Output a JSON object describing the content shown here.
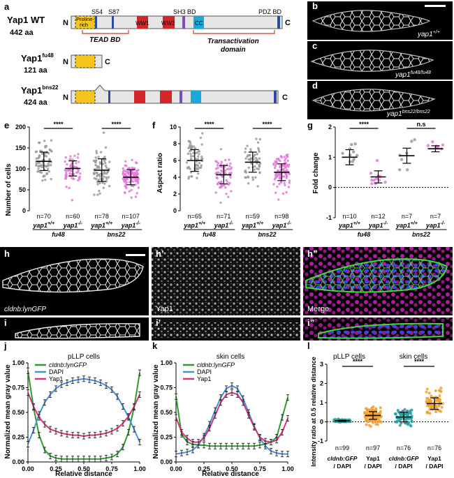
{
  "panels": {
    "a": {
      "letter": "a",
      "constructs": [
        {
          "name": "Yap1 WT",
          "length": "442 aa",
          "n": "N",
          "c": "C"
        },
        {
          "name": "Yap1",
          "sup": "fu48",
          "length": "121 aa",
          "n": "N",
          "c": "C"
        },
        {
          "name": "Yap1",
          "sup": "bns22",
          "length": "424 aa",
          "n": "N",
          "c": "C"
        }
      ],
      "domain_labels": {
        "proline1": "Proline-",
        "proline2": "rich",
        "s54": "S54",
        "s87": "S87",
        "ww1": "WW1",
        "ww2": "WW2",
        "sh3": "SH3 BD",
        "cc": "CC",
        "pdz": "PDZ BD",
        "tead": "TEAD BD",
        "trans1": "Transactivation",
        "trans2": "domain"
      },
      "colors": {
        "proline": "#f5c51c",
        "ww": "#d3262b",
        "cc": "#1aa8d8",
        "sh3": "#7b4fb5",
        "site": "#2a4aa5",
        "body": "#e6e6e6",
        "bracket": "#d9352a"
      }
    },
    "micrographs": [
      {
        "letter": "b",
        "label": "yap1",
        "sup": "+/+"
      },
      {
        "letter": "c",
        "label": "yap1",
        "sup": "fu48/fu48"
      },
      {
        "letter": "d",
        "label": "yap1",
        "sup": "bns22/bns22"
      }
    ],
    "e": {
      "letter": "e",
      "ylabel": "Number of cells",
      "sig": [
        "****",
        "****"
      ],
      "ns": [
        "n=70",
        "n=60",
        "n=78",
        "n=107"
      ]
    },
    "f": {
      "letter": "f",
      "ylabel": "Aspect ratio",
      "sig": [
        "****",
        "****"
      ],
      "ns": [
        "n=65",
        "n=71",
        "n=59",
        "n=98"
      ]
    },
    "g": {
      "letter": "g",
      "ylabel": "Fold change",
      "sig": [
        "****",
        "n.s"
      ],
      "ns": [
        "n=10",
        "n=12",
        "n=7",
        "n=7"
      ]
    },
    "genotype_labels": {
      "wt": "yap1",
      "wt_sup": "+/+",
      "mut": "yap1",
      "mut_sup": "-/-",
      "allele1": "fu48",
      "allele2": "bns22"
    },
    "h_row": [
      {
        "letter": "h",
        "label": "cldnb:lynGFP"
      },
      {
        "letter": "h’",
        "label": "Yap1"
      },
      {
        "letter": "h”",
        "label": "Merge"
      }
    ],
    "i_row": [
      {
        "letter": "i"
      },
      {
        "letter": "i’"
      },
      {
        "letter": "i”"
      }
    ],
    "j": {
      "letter": "j",
      "title": "pLLP cells",
      "ylabel": "Normalized mean gray value",
      "xlabel": "Relative distance"
    },
    "k": {
      "letter": "k",
      "title": "skin cells",
      "ylabel": "Normalized mean gray value",
      "xlabel": "Relative distance"
    },
    "l": {
      "letter": "l",
      "title1": "pLLP cells",
      "title2": "skin cells",
      "ylabel": "Intensity ratio at 0.5 relative distance",
      "sig": [
        "****",
        "****"
      ],
      "ns": [
        "n=99",
        "n=97",
        "n=76",
        "n=76"
      ],
      "xl": [
        [
          "cldnb:GFP",
          "/ DAPI"
        ],
        [
          "Yap1",
          "/ DAPI"
        ],
        [
          "cldnb:GFP",
          "/ DAPI"
        ],
        [
          "Yap1",
          "/ DAPI"
        ]
      ]
    },
    "legend": {
      "gfp": "cldnb:lynGFP",
      "dapi": "DAPI",
      "yap": "Yap1"
    }
  },
  "chart_data": [
    {
      "type": "scatter",
      "panel": "e",
      "ylabel": "Number of cells",
      "ylim": [
        0,
        200
      ],
      "yticks": [
        0,
        50,
        100,
        150,
        200
      ],
      "categories": [
        "yap1+/+ fu48",
        "yap1-/- fu48",
        "yap1+/+ bns22",
        "yap1-/- bns22"
      ],
      "colors": [
        "#9a9a9a",
        "#e07ad8",
        "#9a9a9a",
        "#e07ad8"
      ],
      "mean": [
        118,
        101,
        97,
        80
      ],
      "sd": [
        22,
        18,
        27,
        18
      ],
      "n": [
        70,
        60,
        78,
        107
      ]
    },
    {
      "type": "scatter",
      "panel": "f",
      "ylabel": "Aspect ratio",
      "ylim": [
        0,
        10
      ],
      "yticks": [
        0,
        2,
        4,
        6,
        8,
        10
      ],
      "categories": [
        "yap1+/+ fu48",
        "yap1-/- fu48",
        "yap1+/+ bns22",
        "yap1-/- bns22"
      ],
      "colors": [
        "#9a9a9a",
        "#e07ad8",
        "#9a9a9a",
        "#e07ad8"
      ],
      "mean": [
        6.0,
        4.3,
        5.8,
        4.6
      ],
      "sd": [
        1.3,
        1.1,
        1.2,
        1.0
      ],
      "n": [
        65,
        71,
        59,
        98
      ]
    },
    {
      "type": "scatter",
      "panel": "g",
      "ylabel": "Fold change",
      "ylim": [
        -1,
        2
      ],
      "yticks": [
        -1,
        0,
        1,
        2
      ],
      "categories": [
        "yap1+/+ fu48",
        "yap1-/- fu48",
        "yap1+/+ bns22",
        "yap1-/- bns22"
      ],
      "colors": [
        "#9a9a9a",
        "#e07ad8",
        "#9a9a9a",
        "#e07ad8"
      ],
      "mean": [
        1.0,
        0.35,
        1.05,
        1.28
      ],
      "sd": [
        0.25,
        0.2,
        0.25,
        0.1
      ],
      "n": [
        10,
        12,
        7,
        7
      ]
    },
    {
      "type": "line",
      "panel": "j",
      "title": "pLLP cells",
      "xlabel": "Relative distance",
      "ylabel": "Normalized mean gray value",
      "xlim": [
        0,
        1
      ],
      "ylim": [
        0,
        1
      ],
      "x": [
        0,
        0.05,
        0.1,
        0.15,
        0.2,
        0.25,
        0.3,
        0.35,
        0.4,
        0.45,
        0.5,
        0.55,
        0.6,
        0.65,
        0.7,
        0.75,
        0.8,
        0.85,
        0.9,
        0.95,
        1.0
      ],
      "series": [
        {
          "name": "cldnb:lynGFP",
          "color": "#2e9b2e",
          "values": [
            0.92,
            0.55,
            0.27,
            0.12,
            0.06,
            0.04,
            0.03,
            0.03,
            0.03,
            0.03,
            0.03,
            0.03,
            0.03,
            0.03,
            0.04,
            0.05,
            0.08,
            0.15,
            0.3,
            0.55,
            0.9
          ]
        },
        {
          "name": "DAPI",
          "color": "#4a90d8",
          "values": [
            0.18,
            0.32,
            0.48,
            0.6,
            0.68,
            0.74,
            0.78,
            0.8,
            0.82,
            0.83,
            0.84,
            0.83,
            0.82,
            0.8,
            0.77,
            0.73,
            0.66,
            0.56,
            0.45,
            0.33,
            0.2
          ]
        },
        {
          "name": "Yap1",
          "color": "#d6337a",
          "values": [
            0.7,
            0.56,
            0.45,
            0.38,
            0.33,
            0.31,
            0.29,
            0.28,
            0.27,
            0.27,
            0.26,
            0.27,
            0.27,
            0.28,
            0.29,
            0.31,
            0.34,
            0.39,
            0.46,
            0.56,
            0.68
          ]
        }
      ]
    },
    {
      "type": "line",
      "panel": "k",
      "title": "skin cells",
      "xlabel": "Relative distance",
      "ylabel": "Normalized mean gray value",
      "xlim": [
        0,
        1
      ],
      "ylim": [
        0,
        1
      ],
      "x": [
        0,
        0.05,
        0.1,
        0.15,
        0.2,
        0.25,
        0.3,
        0.35,
        0.4,
        0.45,
        0.5,
        0.55,
        0.6,
        0.65,
        0.7,
        0.75,
        0.8,
        0.85,
        0.9,
        0.95,
        1.0
      ],
      "series": [
        {
          "name": "cldnb:lynGFP",
          "color": "#2e9b2e",
          "values": [
            0.66,
            0.28,
            0.2,
            0.18,
            0.17,
            0.17,
            0.16,
            0.16,
            0.16,
            0.16,
            0.16,
            0.16,
            0.16,
            0.16,
            0.16,
            0.17,
            0.18,
            0.2,
            0.25,
            0.45,
            0.65
          ]
        },
        {
          "name": "DAPI",
          "color": "#4a90d8",
          "values": [
            0.08,
            0.09,
            0.1,
            0.12,
            0.17,
            0.26,
            0.38,
            0.52,
            0.65,
            0.74,
            0.77,
            0.74,
            0.64,
            0.5,
            0.36,
            0.24,
            0.16,
            0.11,
            0.09,
            0.08,
            0.08
          ]
        },
        {
          "name": "Yap1",
          "color": "#d6337a",
          "values": [
            0.45,
            0.3,
            0.24,
            0.2,
            0.2,
            0.24,
            0.34,
            0.47,
            0.6,
            0.68,
            0.7,
            0.68,
            0.6,
            0.47,
            0.35,
            0.25,
            0.21,
            0.2,
            0.22,
            0.3,
            0.44
          ]
        }
      ]
    },
    {
      "type": "scatter",
      "panel": "l",
      "ylabel": "Intensity ratio at 0.5 relative distance",
      "ylim": [
        -1,
        3
      ],
      "yticks": [
        -1,
        0,
        1,
        2,
        3
      ],
      "categories": [
        "cldnb:GFP / DAPI (pLLP)",
        "Yap1 / DAPI (pLLP)",
        "cldnb:GFP / DAPI (skin)",
        "Yap1 / DAPI (skin)"
      ],
      "colors": [
        "#2aa0a0",
        "#f0a030",
        "#2aa0a0",
        "#f0a030"
      ],
      "mean": [
        0.05,
        0.33,
        0.25,
        0.95
      ],
      "sd": [
        0.03,
        0.2,
        0.25,
        0.3
      ],
      "n": [
        99,
        97,
        76,
        76
      ]
    }
  ]
}
